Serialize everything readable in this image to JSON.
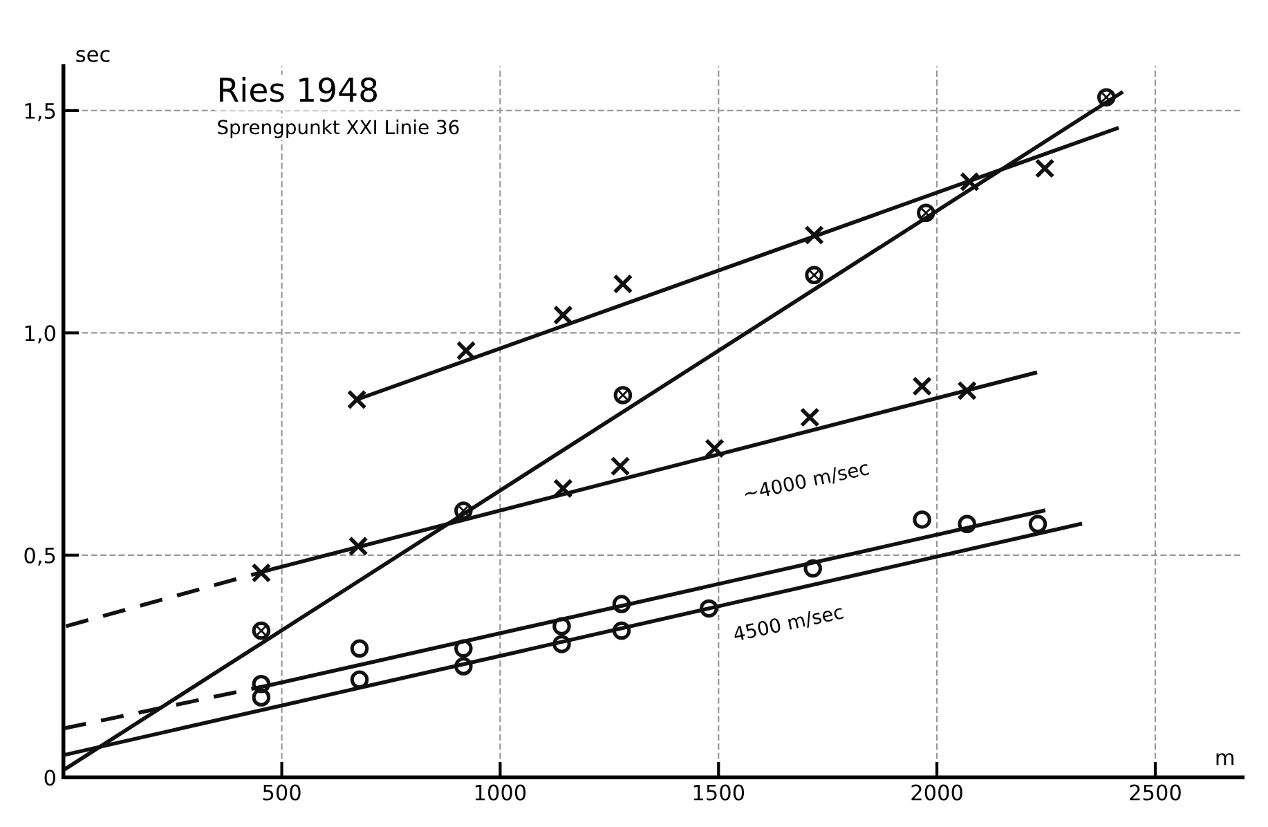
{
  "chart_data": {
    "type": "scatter",
    "title": "Ries 1948",
    "subtitle": "Sprengpunkt XXI Linie 36",
    "xlabel": "m",
    "ylabel": "sec",
    "xlim": [
      0,
      2700
    ],
    "ylim": [
      0,
      1.6
    ],
    "xticks": [
      500,
      1000,
      1500,
      2000,
      2500
    ],
    "yticks": [
      {
        "value": 0,
        "label": "0"
      },
      {
        "value": 0.5,
        "label": "0,5"
      },
      {
        "value": 1.0,
        "label": "1,0"
      },
      {
        "value": 1.5,
        "label": "1,5"
      }
    ],
    "grid": true,
    "series": [
      {
        "marker": "cross",
        "color": "#111111",
        "x": [
          672,
          922,
          1144,
          1281,
          1719,
          2075,
          2247
        ],
        "values": [
          0.85,
          0.96,
          1.04,
          1.11,
          1.22,
          1.34,
          1.37
        ]
      },
      {
        "type": "line",
        "marker": "none",
        "line_style": "solid",
        "color": "#111111",
        "x": [
          672,
          2412
        ],
        "values": [
          0.85,
          1.46
        ]
      },
      {
        "marker": "circle_cross",
        "color": "#111111",
        "x": [
          453,
          916,
          1281,
          1719,
          1975,
          2388
        ],
        "values": [
          0.33,
          0.6,
          0.86,
          1.13,
          1.27,
          1.53
        ]
      },
      {
        "type": "line",
        "marker": "none",
        "line_style": "solid",
        "color": "#111111",
        "x": [
          6,
          2422
        ],
        "values": [
          0.02,
          1.54
        ]
      },
      {
        "marker": "cross",
        "color": "#111111",
        "x": [
          453,
          675,
          1144,
          1275,
          1491,
          1709,
          1966,
          2069
        ],
        "values": [
          0.46,
          0.52,
          0.65,
          0.7,
          0.74,
          0.81,
          0.88,
          0.87
        ]
      },
      {
        "type": "line",
        "marker": "none",
        "line_style": "solid",
        "color": "#111111",
        "x": [
          484,
          2225
        ],
        "values": [
          0.47,
          0.91
        ]
      },
      {
        "type": "line",
        "marker": "none",
        "line_style": "dashed",
        "color": "#111111",
        "x": [
          6,
          484
        ],
        "values": [
          0.34,
          0.47
        ]
      },
      {
        "marker": "circle",
        "color": "#111111",
        "x": [
          453,
          678,
          916,
          1141,
          1278,
          1716,
          1966,
          2069
        ],
        "values": [
          0.21,
          0.29,
          0.29,
          0.34,
          0.39,
          0.47,
          0.58,
          0.57
        ]
      },
      {
        "type": "line",
        "marker": "none",
        "line_style": "solid",
        "color": "#111111",
        "x": [
          484,
          2244
        ],
        "values": [
          0.21,
          0.6
        ]
      },
      {
        "type": "line",
        "marker": "none",
        "line_style": "dashed",
        "color": "#111111",
        "x": [
          0,
          484
        ],
        "values": [
          0.11,
          0.21
        ]
      },
      {
        "marker": "circle",
        "color": "#111111",
        "x": [
          453,
          678,
          916,
          1141,
          1278,
          1478,
          2231
        ],
        "values": [
          0.18,
          0.22,
          0.25,
          0.3,
          0.33,
          0.38,
          0.57
        ]
      },
      {
        "type": "line",
        "marker": "none",
        "line_style": "solid",
        "color": "#111111",
        "x": [
          0,
          2328
        ],
        "values": [
          0.05,
          0.57
        ]
      }
    ],
    "annotations": [
      "~4000 m/sec",
      "4500 m/sec"
    ]
  }
}
